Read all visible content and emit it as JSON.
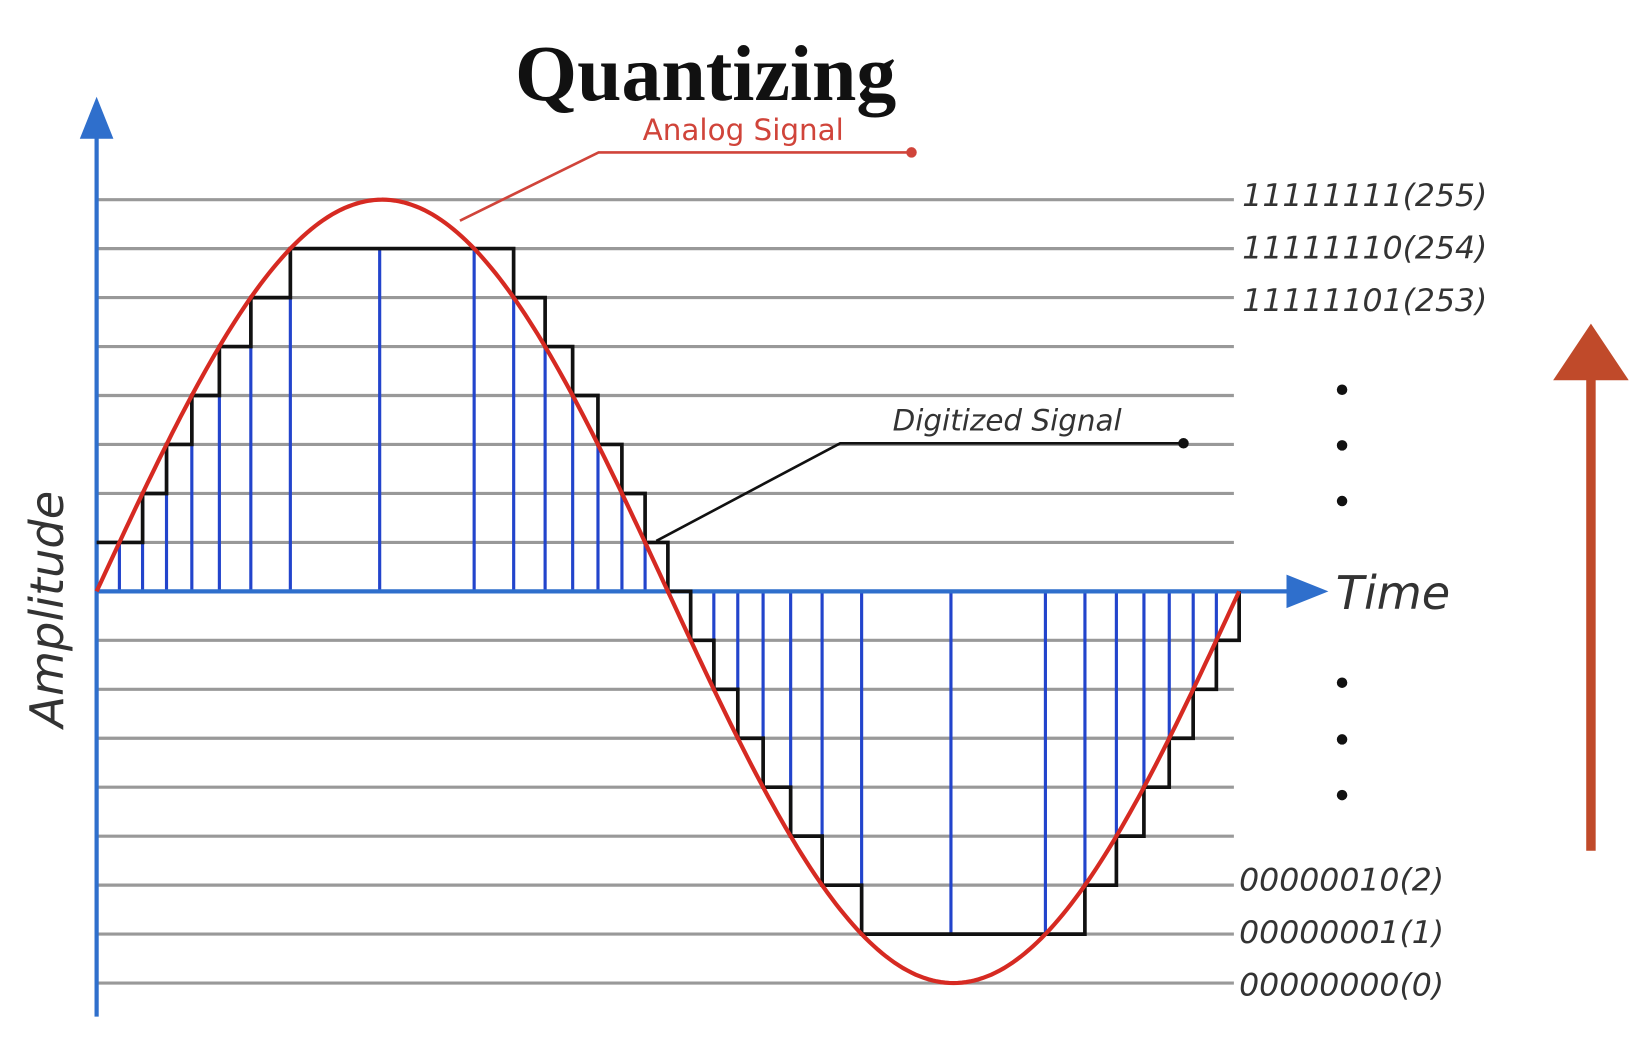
{
  "header": {
    "title": "Quantizing"
  },
  "labels": {
    "analog": "Analog Signal",
    "digitized": "Digitized Signal",
    "y_axis": "Amplitude",
    "x_axis": "Time"
  },
  "levels": {
    "top": [
      "11111111(255)",
      "11111110(254)",
      "11111101(253)"
    ],
    "bottom": [
      "00000010(2)",
      "00000001(1)",
      "00000000(0)"
    ]
  }
}
